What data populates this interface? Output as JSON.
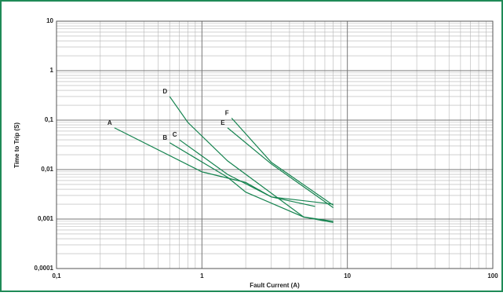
{
  "chart_data": {
    "type": "line",
    "x_label": "Fault Current (A)",
    "y_label": "Time to Trip (S)",
    "log_x": true,
    "log_y": true,
    "grid": true,
    "xlim": [
      0.1,
      100
    ],
    "ylim": [
      0.0001,
      10
    ],
    "xticks": [
      {
        "value": 0.1,
        "label": "0,1"
      },
      1,
      10,
      100
    ],
    "yticks": [
      {
        "value": 0.0001,
        "label": "0,0001"
      },
      {
        "value": 0.001,
        "label": "0,001"
      },
      {
        "value": 0.01,
        "label": "0,01"
      },
      {
        "value": 0.1,
        "label": "0,1"
      },
      1,
      10
    ],
    "series": [
      {
        "name": "A",
        "color": "#15834f",
        "x": [
          0.25,
          1,
          2,
          3,
          6
        ],
        "values": [
          0.07,
          0.009,
          0.0055,
          0.0028,
          0.0018
        ]
      },
      {
        "name": "B",
        "color": "#15834f",
        "x": [
          0.6,
          1.5,
          2,
          5,
          8
        ],
        "values": [
          0.035,
          0.007,
          0.0035,
          0.0011,
          0.0009
        ]
      },
      {
        "name": "C",
        "color": "#15834f",
        "x": [
          0.7,
          1.5,
          3,
          8
        ],
        "values": [
          0.04,
          0.008,
          0.0028,
          0.002
        ]
      },
      {
        "name": "D",
        "color": "#15834f",
        "x": [
          0.6,
          0.8,
          1.5,
          5,
          8
        ],
        "values": [
          0.3,
          0.09,
          0.015,
          0.0011,
          0.00085
        ]
      },
      {
        "name": "E",
        "color": "#15834f",
        "x": [
          1.5,
          3,
          8
        ],
        "values": [
          0.07,
          0.013,
          0.0017
        ]
      },
      {
        "name": "F",
        "color": "#15834f",
        "x": [
          1.6,
          3,
          8
        ],
        "values": [
          0.11,
          0.014,
          0.0019
        ]
      }
    ]
  }
}
